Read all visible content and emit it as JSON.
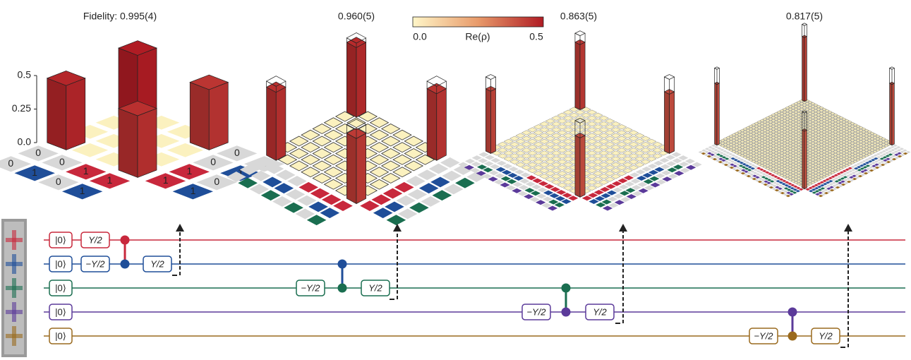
{
  "colorbar": {
    "label": "Re(ρ)",
    "ticks": [
      {
        "value": 0,
        "label": "0.0"
      },
      {
        "value": 0.5,
        "label": "0.5"
      }
    ]
  },
  "panels": [
    {
      "title": "Fidelity: 0.995(4)",
      "n_qubits": 2,
      "corner_values": [
        0.5,
        0.45,
        0.48,
        0.46
      ],
      "zticks": [
        {
          "value": 0,
          "label": "0.0"
        },
        0.25,
        {
          "value": 0.5,
          "label": "0.5"
        }
      ],
      "bit_labels": [
        "0",
        "1"
      ]
    },
    {
      "title": "0.960(5)",
      "n_qubits": 3,
      "corner_values": [
        0.47,
        0.45,
        0.46,
        0.44
      ],
      "ideal_value": 0.5
    },
    {
      "title": "0.863(5)",
      "n_qubits": 4,
      "corner_values": [
        0.44,
        0.4,
        0.42,
        0.4
      ],
      "ideal_value": 0.5
    },
    {
      "title": "0.817(5)",
      "n_qubits": 5,
      "corner_values": [
        0.42,
        0.4,
        0.4,
        0.38
      ],
      "ideal_value": 0.5
    }
  ],
  "circuit": {
    "qubits": [
      {
        "color": "#c8283c",
        "gates": [
          "|0⟩",
          "Y/2"
        ]
      },
      {
        "color": "#1f4e99",
        "gates": [
          "|0⟩",
          "−Y/2",
          "Y/2"
        ]
      },
      {
        "color": "#1a6e50",
        "gates": [
          "|0⟩",
          "−Y/2",
          "Y/2"
        ]
      },
      {
        "color": "#5b3a9a",
        "gates": [
          "|0⟩",
          "−Y/2",
          "Y/2"
        ]
      },
      {
        "color": "#9a6a1e",
        "gates": [
          "|0⟩",
          "−Y/2",
          "Y/2"
        ]
      }
    ]
  }
}
